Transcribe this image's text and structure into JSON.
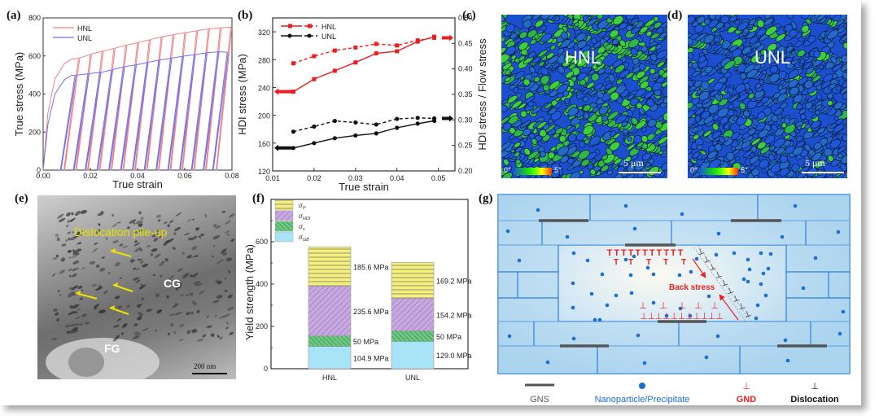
{
  "panels": {
    "a": {
      "label": "(a)"
    },
    "b": {
      "label": "(b)"
    },
    "c": {
      "label": "(c)",
      "map_label": "HNL",
      "scale": "5 μm",
      "cbar_min": "0°",
      "cbar_max": "5°"
    },
    "d": {
      "label": "(d)",
      "map_label": "UNL",
      "scale": "5 μm",
      "cbar_min": "0°",
      "cbar_max": "5°"
    },
    "e": {
      "label": "(e)",
      "title": "Dislocation pile-up",
      "cg": "CG",
      "fg": "FG",
      "scale": "200 nm"
    },
    "f": {
      "label": "(f)"
    },
    "g": {
      "label": "(g)",
      "back_stress": "Back stress",
      "legend": [
        {
          "name": "GNS",
          "color": "#555555"
        },
        {
          "name": "Nanoparticle/Precipitate",
          "color": "#1a6fd0"
        },
        {
          "name": "GND",
          "color": "#e82020",
          "symbol": "⊥"
        },
        {
          "name": "Dislocation",
          "color": "#111111",
          "symbol": "⊥"
        }
      ]
    }
  },
  "chart_data": [
    {
      "id": "a",
      "type": "line",
      "title": "",
      "xlabel": "True strain",
      "ylabel": "True stress (MPa)",
      "xlim": [
        0,
        0.08
      ],
      "ylim": [
        0,
        800
      ],
      "xticks": [
        "0.00",
        "0.02",
        "0.04",
        "0.06",
        "0.08"
      ],
      "yticks": [
        "0",
        "200",
        "400",
        "600",
        "800"
      ],
      "legend_position": "top-left",
      "series": [
        {
          "name": "HNL",
          "color": "#f08080",
          "envelope": [
            [
              0,
              0
            ],
            [
              0.002,
              300
            ],
            [
              0.005,
              480
            ],
            [
              0.009,
              560
            ],
            [
              0.012,
              583
            ],
            [
              0.015,
              588
            ],
            [
              0.02,
              608
            ],
            [
              0.025,
              625
            ],
            [
              0.03,
              640
            ],
            [
              0.035,
              656
            ],
            [
              0.04,
              670
            ],
            [
              0.045,
              685
            ],
            [
              0.05,
              700
            ],
            [
              0.055,
              712
            ],
            [
              0.06,
              722
            ],
            [
              0.065,
              732
            ],
            [
              0.07,
              742
            ],
            [
              0.075,
              748
            ],
            [
              0.08,
              752
            ]
          ],
          "unload_strains": [
            0.015,
            0.02,
            0.025,
            0.03,
            0.035,
            0.04,
            0.045,
            0.05,
            0.055,
            0.06,
            0.065,
            0.07,
            0.075,
            0.0795
          ],
          "reload_zero_strains": [
            0.01,
            0.015,
            0.02,
            0.025,
            0.03,
            0.035,
            0.04,
            0.045,
            0.05,
            0.055,
            0.06,
            0.065,
            0.07,
            0.0685
          ]
        },
        {
          "name": "UNL",
          "color": "#7070f0",
          "envelope": [
            [
              0,
              0
            ],
            [
              0.002,
              240
            ],
            [
              0.005,
              400
            ],
            [
              0.009,
              475
            ],
            [
              0.012,
              498
            ],
            [
              0.015,
              500
            ],
            [
              0.02,
              508
            ],
            [
              0.025,
              515
            ],
            [
              0.03,
              530
            ],
            [
              0.035,
              545
            ],
            [
              0.04,
              555
            ],
            [
              0.045,
              568
            ],
            [
              0.05,
              580
            ],
            [
              0.055,
              590
            ],
            [
              0.06,
              600
            ],
            [
              0.065,
              608
            ],
            [
              0.07,
              618
            ],
            [
              0.075,
              622
            ],
            [
              0.08,
              618
            ]
          ],
          "unload_strains": [
            0.0135,
            0.019,
            0.024,
            0.029,
            0.034,
            0.039,
            0.044,
            0.049,
            0.054,
            0.059,
            0.064,
            0.069,
            0.074,
            0.078
          ],
          "reload_zero_strains": [
            0.0085,
            0.0135,
            0.019,
            0.024,
            0.029,
            0.034,
            0.039,
            0.044,
            0.049,
            0.054,
            0.059,
            0.064,
            0.069,
            0.0745
          ]
        }
      ]
    },
    {
      "id": "b",
      "type": "line",
      "xlabel": "True strain",
      "ylabel": "HDI stress (MPa)",
      "y2label": "HDI stress / Flow stress",
      "xlim": [
        0.01,
        0.054
      ],
      "ylim": [
        120,
        340
      ],
      "y2lim": [
        0.2,
        0.5
      ],
      "xticks": [
        "0.01",
        "0.02",
        "0.03",
        "0.04",
        "0.05"
      ],
      "yticks": [
        "120",
        "160",
        "200",
        "240",
        "280",
        "320"
      ],
      "y2ticks": [
        "0.20",
        "0.25",
        "0.30",
        "0.35",
        "0.40",
        "0.45",
        "0.50"
      ],
      "legend_position": "top-left",
      "x": [
        0.015,
        0.02,
        0.025,
        0.03,
        0.035,
        0.04,
        0.045,
        0.049
      ],
      "series": [
        {
          "name": "HNL",
          "style": "solid",
          "axis": "left",
          "color": "#ee1c1c",
          "marker": "square",
          "values": [
            234,
            252,
            264,
            276,
            289,
            292,
            306,
            313
          ]
        },
        {
          "name": "HNL",
          "style": "dash",
          "axis": "right",
          "color": "#ee1c1c",
          "marker": "square",
          "values": [
            0.411,
            0.425,
            0.436,
            0.442,
            0.449,
            0.446,
            0.456,
            0.461
          ]
        },
        {
          "name": "UNL",
          "style": "solid",
          "axis": "left",
          "color": "#111111",
          "marker": "circle",
          "values": [
            153,
            160,
            167,
            171,
            174,
            182,
            188,
            192
          ]
        },
        {
          "name": "UNL",
          "style": "dash",
          "axis": "right",
          "color": "#111111",
          "marker": "circle",
          "values": [
            0.277,
            0.287,
            0.298,
            0.295,
            0.291,
            0.302,
            0.304,
            0.303
          ]
        }
      ]
    },
    {
      "id": "f",
      "type": "bar",
      "stacked": true,
      "xlabel": "",
      "ylabel": "Yield strength (MPa)",
      "ylim": [
        0,
        800
      ],
      "yticks": [
        "0",
        "200",
        "400",
        "600"
      ],
      "categories": [
        "HNL",
        "UNL"
      ],
      "legend_position": "top-left",
      "series": [
        {
          "name": "σ_GB",
          "color": "#a8e4f8",
          "pattern": "none",
          "values": [
            104.9,
            129.0
          ],
          "labels": [
            "104.9 MPa",
            "129.0 MPa"
          ]
        },
        {
          "name": "σ_s",
          "color": "#6cc880",
          "pattern": "diag",
          "values": [
            50,
            50
          ],
          "labels": [
            "50 MPa",
            "50 MPa"
          ]
        },
        {
          "name": "σ_HDI",
          "color": "#c8a8e0",
          "pattern": "diag-rev",
          "values": [
            235.6,
            154.2
          ],
          "labels": [
            "235.6 MPa",
            "154.2 MPa"
          ]
        },
        {
          "name": "σ_P",
          "color": "#f5f07a",
          "pattern": "horiz",
          "values": [
            185.6,
            169.2
          ],
          "labels": [
            "185.6 MPa",
            "169.2 MPa"
          ]
        }
      ]
    }
  ]
}
